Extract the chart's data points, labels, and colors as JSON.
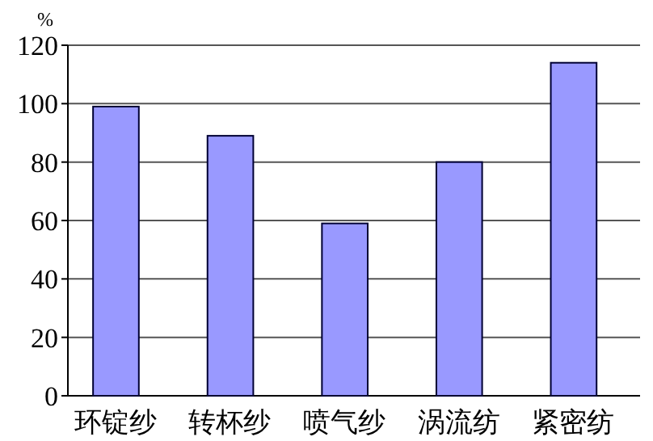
{
  "chart_data": {
    "type": "bar",
    "ylabel": "%",
    "categories": [
      "环锭纱",
      "转杯纱",
      "喷气纱",
      "涡流纺",
      "紧密纺"
    ],
    "values": [
      99,
      89,
      59,
      80,
      114
    ],
    "color": "#9999ff",
    "ylim": [
      0,
      120
    ],
    "yticks": [
      0,
      20,
      40,
      60,
      80,
      100,
      120
    ],
    "grid": "y"
  }
}
